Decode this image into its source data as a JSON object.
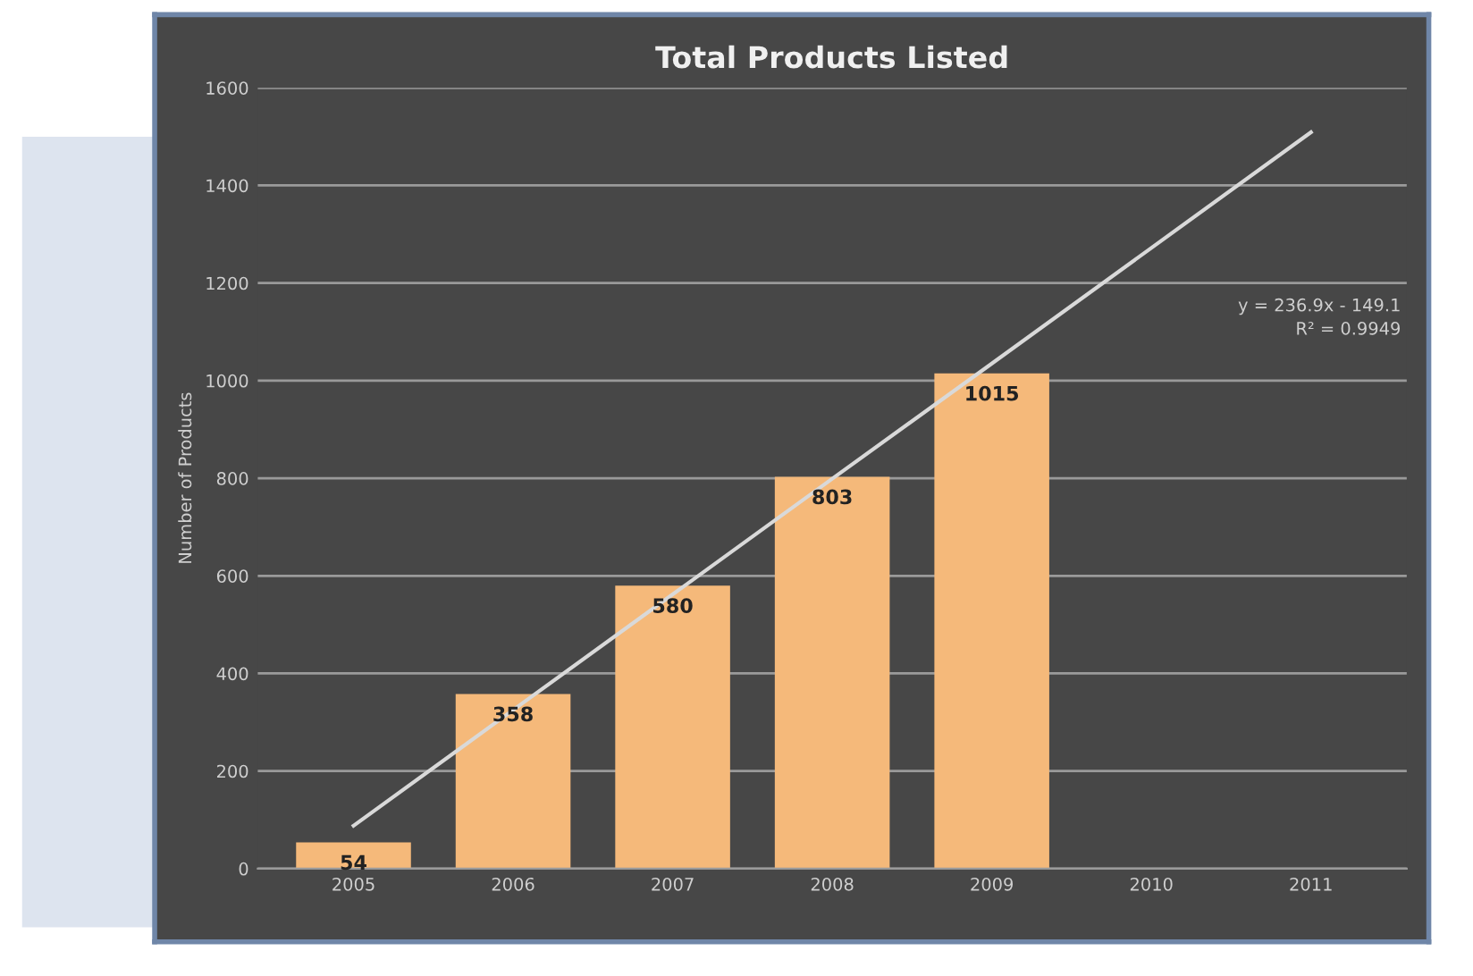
{
  "chart_data": {
    "type": "bar",
    "title": "Total Products Listed",
    "ylabel": "Number of Products",
    "categories": [
      "2005",
      "2006",
      "2007",
      "2008",
      "2009",
      "2010",
      "2011"
    ],
    "series": [
      {
        "color": "#f5b97a",
        "values": [
          54,
          358,
          580,
          803,
          1015,
          null,
          null
        ],
        "value_labels": [
          "54",
          "358",
          "580",
          "803",
          "1015",
          null,
          null
        ]
      },
      {
        "type": "line",
        "color": "#d9d9d9",
        "values": [
          88,
          325,
          562,
          799,
          1035,
          1272,
          1509
        ]
      }
    ],
    "ylim": [
      0,
      1600
    ],
    "yticks": [
      0,
      200,
      400,
      600,
      800,
      1000,
      1200,
      1400,
      1600
    ],
    "grid": "y",
    "marker": "none",
    "annotations": [
      "y = 236.9x - 149.1",
      "R² = 0.9949"
    ]
  }
}
